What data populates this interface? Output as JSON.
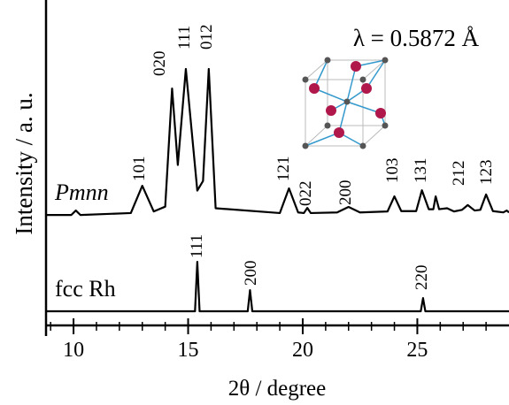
{
  "chart_data": {
    "type": "line",
    "xlabel": "2θ / degree",
    "ylabel": "Intensity / a. u.",
    "annotation": "λ = 0.5872 Å",
    "xlim": [
      8.8,
      29
    ],
    "xticks": [
      10,
      15,
      20,
      25
    ],
    "xminorticks": [
      9,
      11,
      12,
      13,
      14,
      16,
      17,
      18,
      19,
      21,
      22,
      23,
      24,
      26,
      27,
      28
    ],
    "ylim": [
      0,
      100
    ],
    "series": [
      {
        "name": "Pmnn",
        "color": "#000000",
        "x": [
          8.8,
          9.9,
          10.1,
          10.3,
          12.5,
          13.0,
          13.5,
          14.0,
          14.3,
          14.55,
          14.9,
          15.4,
          15.65,
          15.9,
          16.2,
          19.0,
          19.4,
          19.8,
          20.05,
          20.2,
          20.35,
          21.5,
          22.0,
          22.5,
          23.7,
          24.0,
          24.3,
          24.95,
          25.2,
          25.5,
          25.7,
          25.8,
          25.95,
          26.3,
          26.6,
          26.95,
          27.2,
          27.5,
          27.75,
          28.0,
          28.3,
          28.75,
          28.9,
          29.0
        ],
        "values": [
          34.4,
          34.4,
          35.8,
          34.4,
          35,
          43.5,
          35.5,
          37,
          73.8,
          50,
          79.9,
          42,
          45,
          79.9,
          36.5,
          35,
          42.7,
          35.2,
          35,
          36.6,
          35,
          35.2,
          36.9,
          35.2,
          35.5,
          40.2,
          35.6,
          35.6,
          42.1,
          36.2,
          36.2,
          40.2,
          36.2,
          36.5,
          35.5,
          36,
          37.5,
          35.8,
          36,
          40.8,
          35.6,
          35.2,
          35.8,
          35.2
        ],
        "peak_labels": [
          "101",
          "020",
          "111",
          "012",
          "121",
          "022",
          "200",
          "103",
          "131",
          "212",
          "123"
        ]
      },
      {
        "name": "fcc Rh",
        "color": "#000000",
        "x": [
          8.8,
          15.3,
          15.4,
          15.5,
          17.6,
          17.7,
          17.8,
          25.15,
          25.25,
          25.35,
          29.0
        ],
        "values": [
          4.4,
          4.4,
          19.8,
          4.4,
          4.4,
          11,
          4.4,
          4.4,
          8.5,
          4.4,
          4.4
        ],
        "peak_labels": [
          "111",
          "200",
          "220"
        ]
      }
    ]
  }
}
